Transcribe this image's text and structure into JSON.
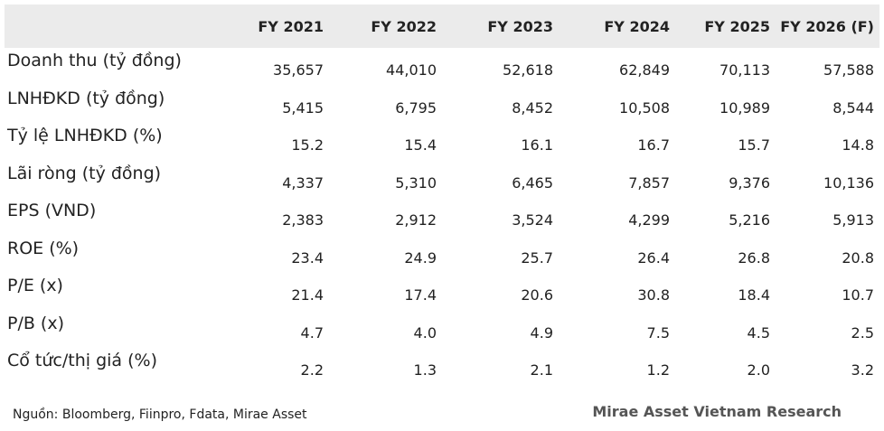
{
  "table": {
    "columns": [
      "FY 2021",
      "FY 2022",
      "FY 2023",
      "FY 2024",
      "FY 2025",
      "FY 2026 (F)"
    ],
    "rows": [
      {
        "label": "Doanh thu (tỷ đồng)",
        "values": [
          "35,657",
          "44,010",
          "52,618",
          "62,849",
          "70,113",
          "57,588"
        ]
      },
      {
        "label": "LNHĐKD (tỷ đồng)",
        "values": [
          "5,415",
          "6,795",
          "8,452",
          "10,508",
          "10,989",
          "8,544"
        ]
      },
      {
        "label": "Tỷ lệ LNHĐKD (%)",
        "values": [
          "15.2",
          "15.4",
          "16.1",
          "16.7",
          "15.7",
          "14.8"
        ]
      },
      {
        "label": "Lãi ròng (tỷ đồng)",
        "values": [
          "4,337",
          "5,310",
          "6,465",
          "7,857",
          "9,376",
          "10,136"
        ]
      },
      {
        "label": "EPS (VND)",
        "values": [
          "2,383",
          "2,912",
          "3,524",
          "4,299",
          "5,216",
          "5,913"
        ]
      },
      {
        "label": "ROE (%)",
        "values": [
          "23.4",
          "24.9",
          "25.7",
          "26.4",
          "26.8",
          "20.8"
        ]
      },
      {
        "label": "P/E (x)",
        "values": [
          "21.4",
          "17.4",
          "20.6",
          "30.8",
          "18.4",
          "10.7"
        ]
      },
      {
        "label": "P/B (x)",
        "values": [
          "4.7",
          "4.0",
          "4.9",
          "7.5",
          "4.5",
          "2.5"
        ]
      },
      {
        "label": "Cổ tức/thị giá (%)",
        "values": [
          "2.2",
          "1.3",
          "2.1",
          "1.2",
          "2.0",
          "3.2"
        ]
      }
    ]
  },
  "footer": {
    "source": "Nguồn: Bloomberg, Fiinpro, Fdata, Mirae Asset",
    "brand": "Mirae Asset Vietnam Research"
  },
  "colors": {
    "header_bg": "#ebebeb",
    "text": "#222222",
    "brand_text": "#555555"
  }
}
